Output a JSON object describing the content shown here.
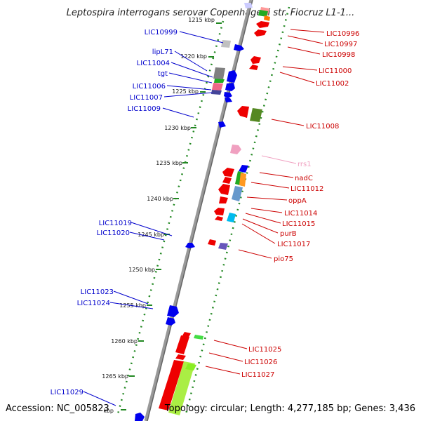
{
  "header": {
    "title": "Leptospira interrogans serovar Copenhageni str. Fiocruz L1-1..."
  },
  "footer": {
    "accession": "Accession: NC_005823",
    "topology": "Topology: circular; Length: 4,277,185 bp; Genes: 3,436"
  },
  "scale": {
    "unit": "kbp",
    "ticks": [
      "1215 kbp",
      "1220 kbp",
      "1225 kbp",
      "1230 kbp",
      "1235 kbp",
      "1240 kbp",
      "1245 kbp",
      "1250 kbp",
      "1255 kbp",
      "1260 kbp",
      "1265 kbp",
      "kbp"
    ]
  },
  "genes_left": [
    "LIC10999",
    "lipL71",
    "LIC11004",
    "tgt",
    "LIC11006",
    "LIC11007",
    "LIC11009",
    "LIC11019",
    "LIC11020",
    "LIC11023",
    "LIC11024",
    "LIC11029"
  ],
  "genes_right": [
    "LIC10996",
    "LIC10997",
    "LIC10998",
    "LIC11000",
    "LIC11002",
    "LIC11008",
    "rrs1",
    "nadC",
    "LIC11012",
    "oppA",
    "LIC11014",
    "LIC11015",
    "purB",
    "LIC11017",
    "pio75",
    "LIC11025",
    "LIC11026",
    "LIC11027"
  ],
  "colors": {
    "forward": "#0000ee",
    "reverse": "#ee0000",
    "rna": "#f0a0c0",
    "backbone": "#888888",
    "scale_dots": "#228822"
  }
}
